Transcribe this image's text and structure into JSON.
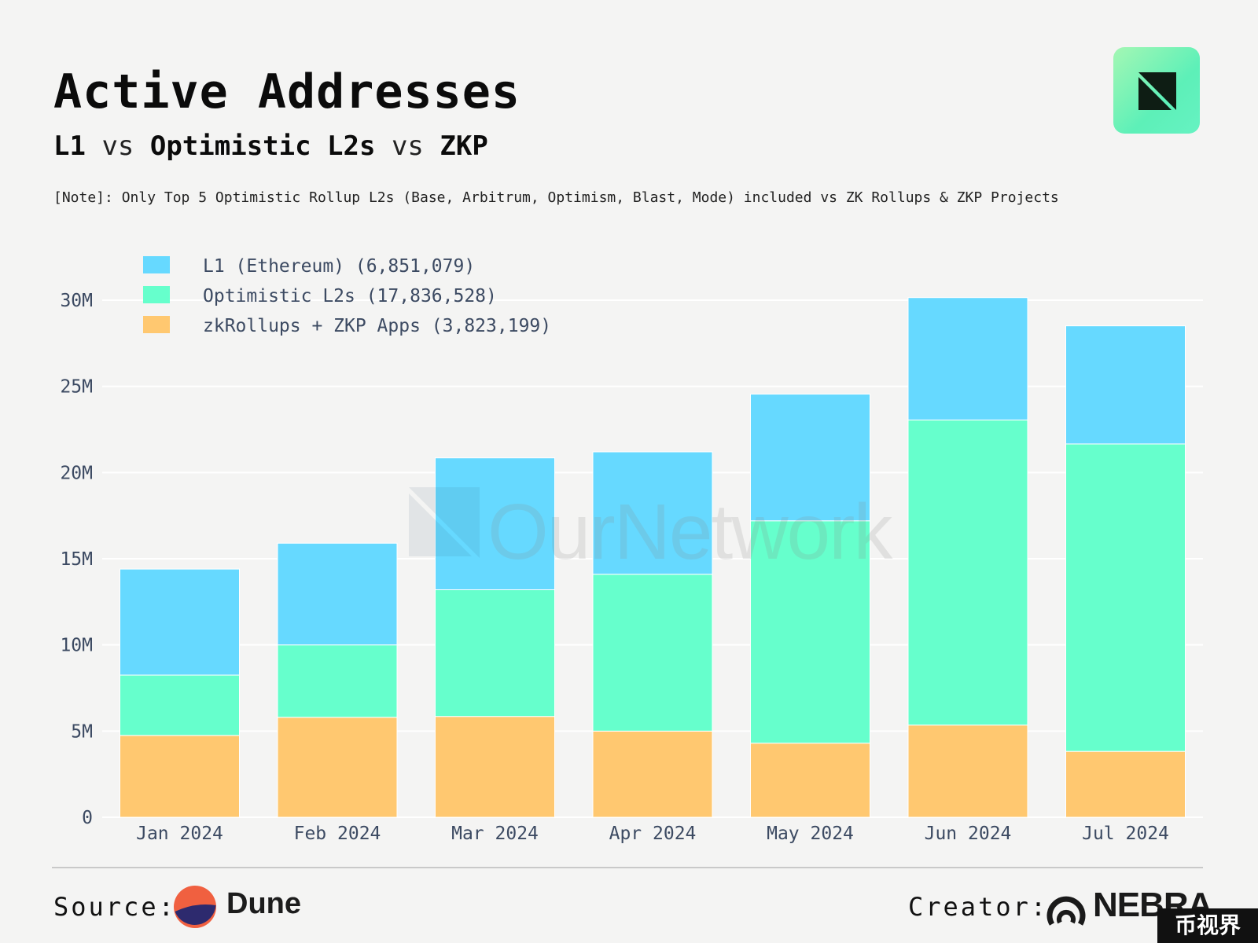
{
  "header": {
    "title": "Active Addresses",
    "subtitle_a": "L1",
    "subtitle_vs1": "vs",
    "subtitle_b": "Optimistic L2s",
    "subtitle_vs2": "vs",
    "subtitle_c": "ZKP",
    "note": "[Note]: Only Top 5 Optimistic Rollup L2s (Base, Arbitrum, Optimism, Blast, Mode) included vs ZK Rollups & ZKP Projects"
  },
  "watermark": "OurNetwork",
  "footer": {
    "source_label": "Source:",
    "source_name": "Dune",
    "creator_label": "Creator:",
    "creator_name": "NEBRA",
    "corner_badge": "币视界"
  },
  "colors": {
    "l1": "#66d9ff",
    "optimistic": "#66ffcc",
    "zkp": "#ffc870",
    "grid": "#ffffff",
    "axis_text": "#3c4a62"
  },
  "chart_data": {
    "type": "bar",
    "stacked": true,
    "title": "Active Addresses",
    "xlabel": "",
    "ylabel": "",
    "ylim": [
      0,
      30000000
    ],
    "yticks": [
      0,
      5000000,
      10000000,
      15000000,
      20000000,
      25000000,
      30000000
    ],
    "ytick_labels": [
      "0",
      "5M",
      "10M",
      "15M",
      "20M",
      "25M",
      "30M"
    ],
    "legend_position": "top-left",
    "categories": [
      "Jan 2024",
      "Feb 2024",
      "Mar 2024",
      "Apr 2024",
      "May 2024",
      "Jun 2024",
      "Jul 2024"
    ],
    "series": [
      {
        "name": "zkRollups + ZKP Apps (3,823,199)",
        "color_key": "zkp",
        "values": [
          4750000,
          5800000,
          5850000,
          5000000,
          4300000,
          5350000,
          3823199
        ]
      },
      {
        "name": "Optimistic L2s (17,836,528)",
        "color_key": "optimistic",
        "values": [
          3500000,
          4200000,
          7350000,
          9100000,
          12900000,
          17700000,
          17836528
        ]
      },
      {
        "name": "L1 (Ethereum) (6,851,079)",
        "color_key": "l1",
        "values": [
          6150000,
          5900000,
          7650000,
          7100000,
          7350000,
          7100000,
          6851079
        ]
      }
    ],
    "legend_order": [
      2,
      1,
      0
    ]
  }
}
